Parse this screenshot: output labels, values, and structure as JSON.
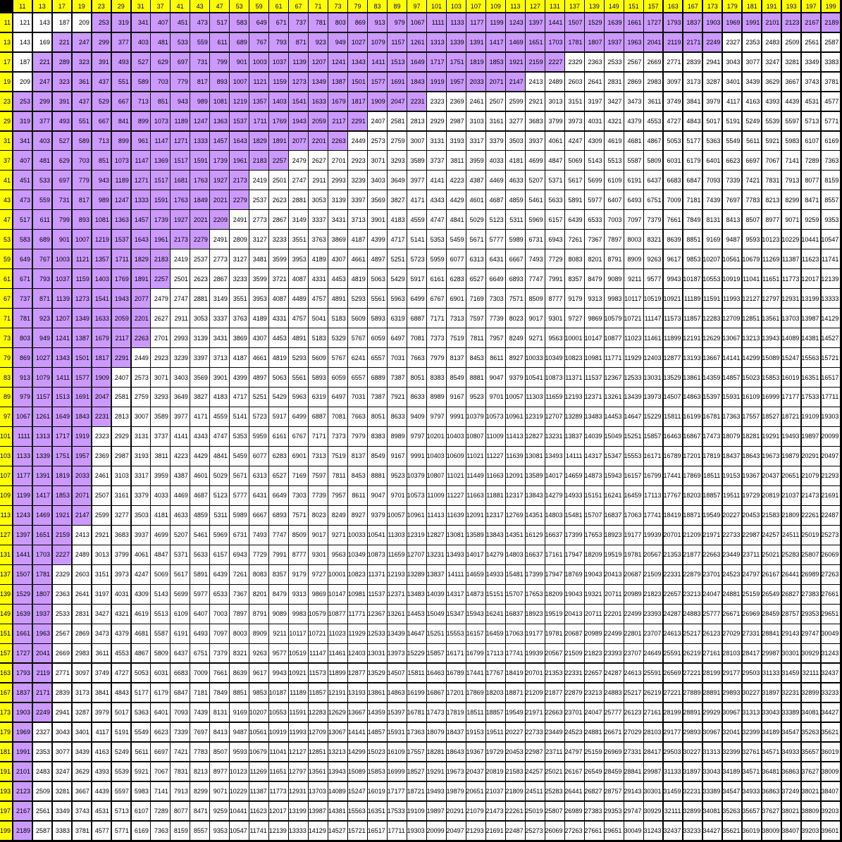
{
  "primes": [
    11,
    13,
    17,
    19,
    23,
    29,
    31,
    37,
    41,
    43,
    47,
    53,
    59,
    61,
    67,
    71,
    73,
    79,
    83,
    89,
    97,
    101,
    103,
    107,
    109,
    113,
    127,
    131,
    137,
    139,
    149,
    151,
    157,
    163,
    167,
    173,
    179,
    181,
    191,
    193,
    197,
    199
  ],
  "highlight": {
    "min_exclusive": 209,
    "max_exclusive": 2310,
    "color": "#cc99ff"
  },
  "colors": {
    "header": "#ffff00",
    "cell": "#ffffff",
    "corner": "#000000",
    "grid": "#000000"
  }
}
